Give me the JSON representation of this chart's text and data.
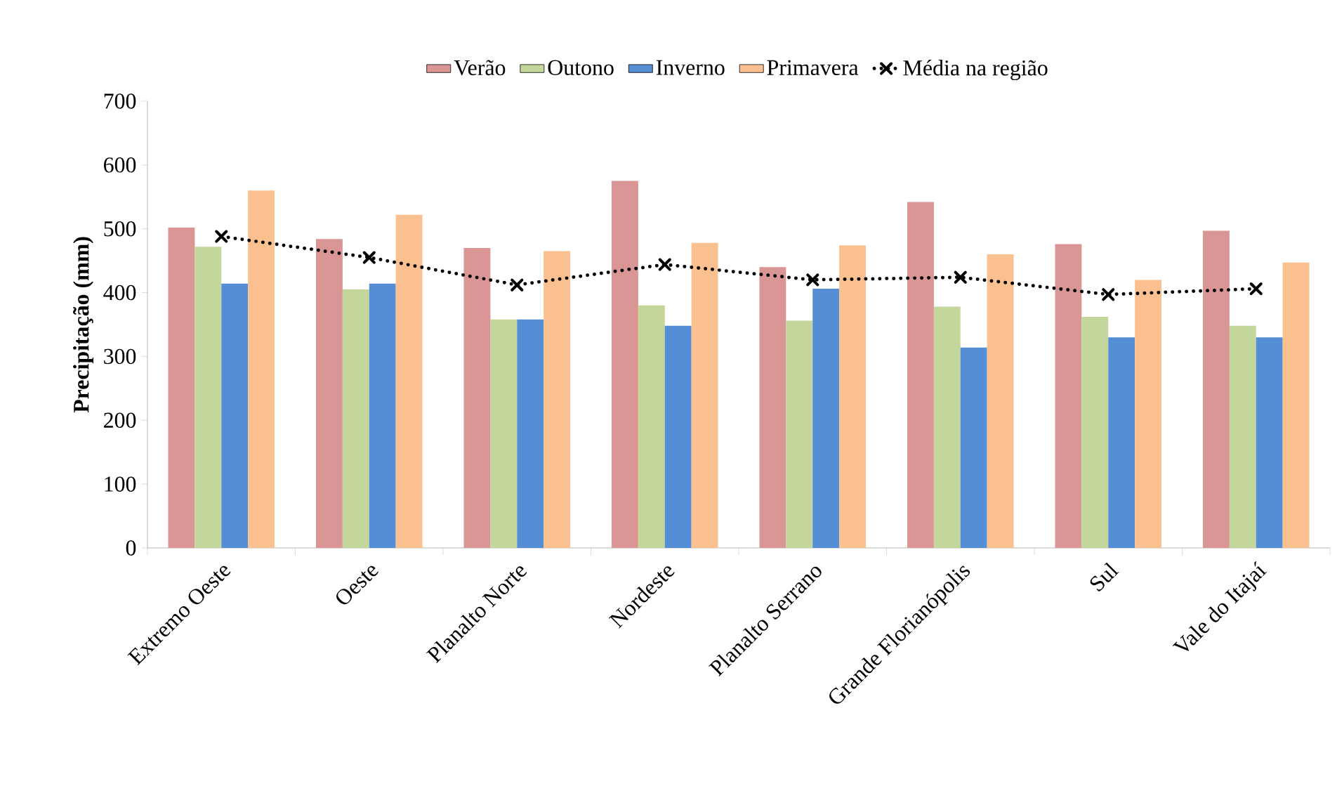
{
  "chart_data": {
    "type": "bar",
    "ylabel": "Precipitação (mm)",
    "categories": [
      "Extremo Oeste",
      "Oeste",
      "Planalto Norte",
      "Nordeste",
      "Planalto Serrano",
      "Grande Florianópolis",
      "Sul",
      "Vale do Itajaí"
    ],
    "series": [
      {
        "name": "Verão",
        "color": "#d99694",
        "values": [
          502,
          484,
          470,
          575,
          440,
          542,
          476,
          497
        ]
      },
      {
        "name": "Outono",
        "color": "#c3d69b",
        "values": [
          472,
          405,
          358,
          380,
          356,
          378,
          362,
          348
        ]
      },
      {
        "name": "Inverno",
        "color": "#558ed5",
        "values": [
          414,
          414,
          358,
          348,
          406,
          314,
          330,
          330
        ]
      },
      {
        "name": "Primavera",
        "color": "#fac090",
        "values": [
          560,
          522,
          465,
          478,
          474,
          460,
          420,
          447
        ]
      },
      {
        "name": "Média na região",
        "type": "line",
        "color": "#000000",
        "values": [
          488,
          455,
          412,
          444,
          420,
          424,
          397,
          406
        ]
      }
    ],
    "ylim": [
      0,
      700
    ],
    "yticks": [
      0,
      100,
      200,
      300,
      400,
      500,
      600,
      700
    ],
    "grid": false,
    "legend": "top",
    "marker": "cross",
    "line_style": "dotted"
  }
}
